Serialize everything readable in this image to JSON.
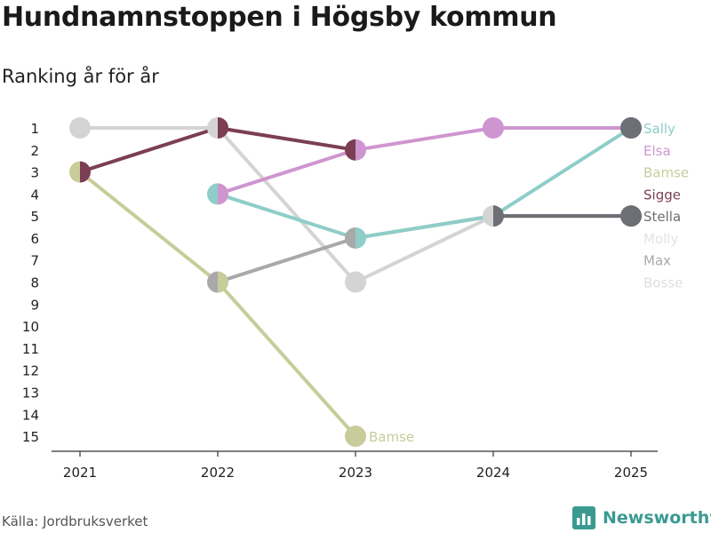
{
  "header": {
    "title": "Hundnamnstoppen i Högsby kommun",
    "subtitle": "Ranking år för år"
  },
  "footer": {
    "source": "Källa: Jordbruksverket",
    "brand": "Newsworthy"
  },
  "colors": {
    "brand": "#3a9a92",
    "axis": "#333333"
  },
  "chart_data": {
    "type": "line",
    "title": "Hundnamnstoppen i Högsby kommun",
    "subtitle": "Ranking år för år",
    "x": [
      "2021",
      "2022",
      "2023",
      "2024",
      "2025"
    ],
    "y_ticks": [
      "1",
      "2",
      "3",
      "4",
      "5",
      "6",
      "7",
      "8",
      "9",
      "10",
      "11",
      "12",
      "13",
      "14",
      "15"
    ],
    "ylim": [
      1,
      15
    ],
    "y_inverted": true,
    "legend_position": "right",
    "series": [
      {
        "name": "Molly",
        "color": "#d4d4d4",
        "ranks": [
          1,
          1,
          8,
          5,
          5
        ]
      },
      {
        "name": "Max",
        "color": "#a9a9a9",
        "ranks": [
          null,
          8,
          6,
          5,
          5
        ]
      },
      {
        "name": "Bamse",
        "color": "#c8cc9a",
        "ranks": [
          3,
          8,
          15,
          null,
          null
        ]
      },
      {
        "name": "Sigge",
        "color": "#7b3e55",
        "ranks": [
          3,
          1,
          2,
          null,
          null
        ]
      },
      {
        "name": "Sally",
        "color": "#8ecdc8",
        "ranks": [
          null,
          4,
          6,
          5,
          1
        ]
      },
      {
        "name": "Elsa",
        "color": "#cf95d0",
        "ranks": [
          null,
          4,
          2,
          1,
          1
        ]
      },
      {
        "name": "Stella",
        "color": "#6e6e75",
        "ranks": [
          null,
          null,
          null,
          5,
          5
        ]
      },
      {
        "name": "Bosse",
        "color": "#e6e6e6",
        "ranks": [
          null,
          null,
          null,
          null,
          null
        ]
      }
    ],
    "end_labels": [
      {
        "name": "Sally",
        "color": "#8ecdc8"
      },
      {
        "name": "Elsa",
        "color": "#cf95d0"
      },
      {
        "name": "Bamse",
        "color": "#c8cc9a"
      },
      {
        "name": "Sigge",
        "color": "#7b3e55"
      },
      {
        "name": "Stella",
        "color": "#6e6e75"
      },
      {
        "name": "Molly",
        "color": "#e3e3e3"
      },
      {
        "name": "Max",
        "color": "#a9a9a9"
      },
      {
        "name": "Bosse",
        "color": "#dedede"
      }
    ],
    "end_marker_2025": [
      {
        "rank": 1,
        "color": "#6e6e75"
      },
      {
        "rank": 5,
        "color": "#6e6e75"
      }
    ],
    "annotations": [
      {
        "text": "Bamse",
        "x": "2023",
        "rank": 15,
        "color": "#c8cc9a"
      }
    ]
  }
}
